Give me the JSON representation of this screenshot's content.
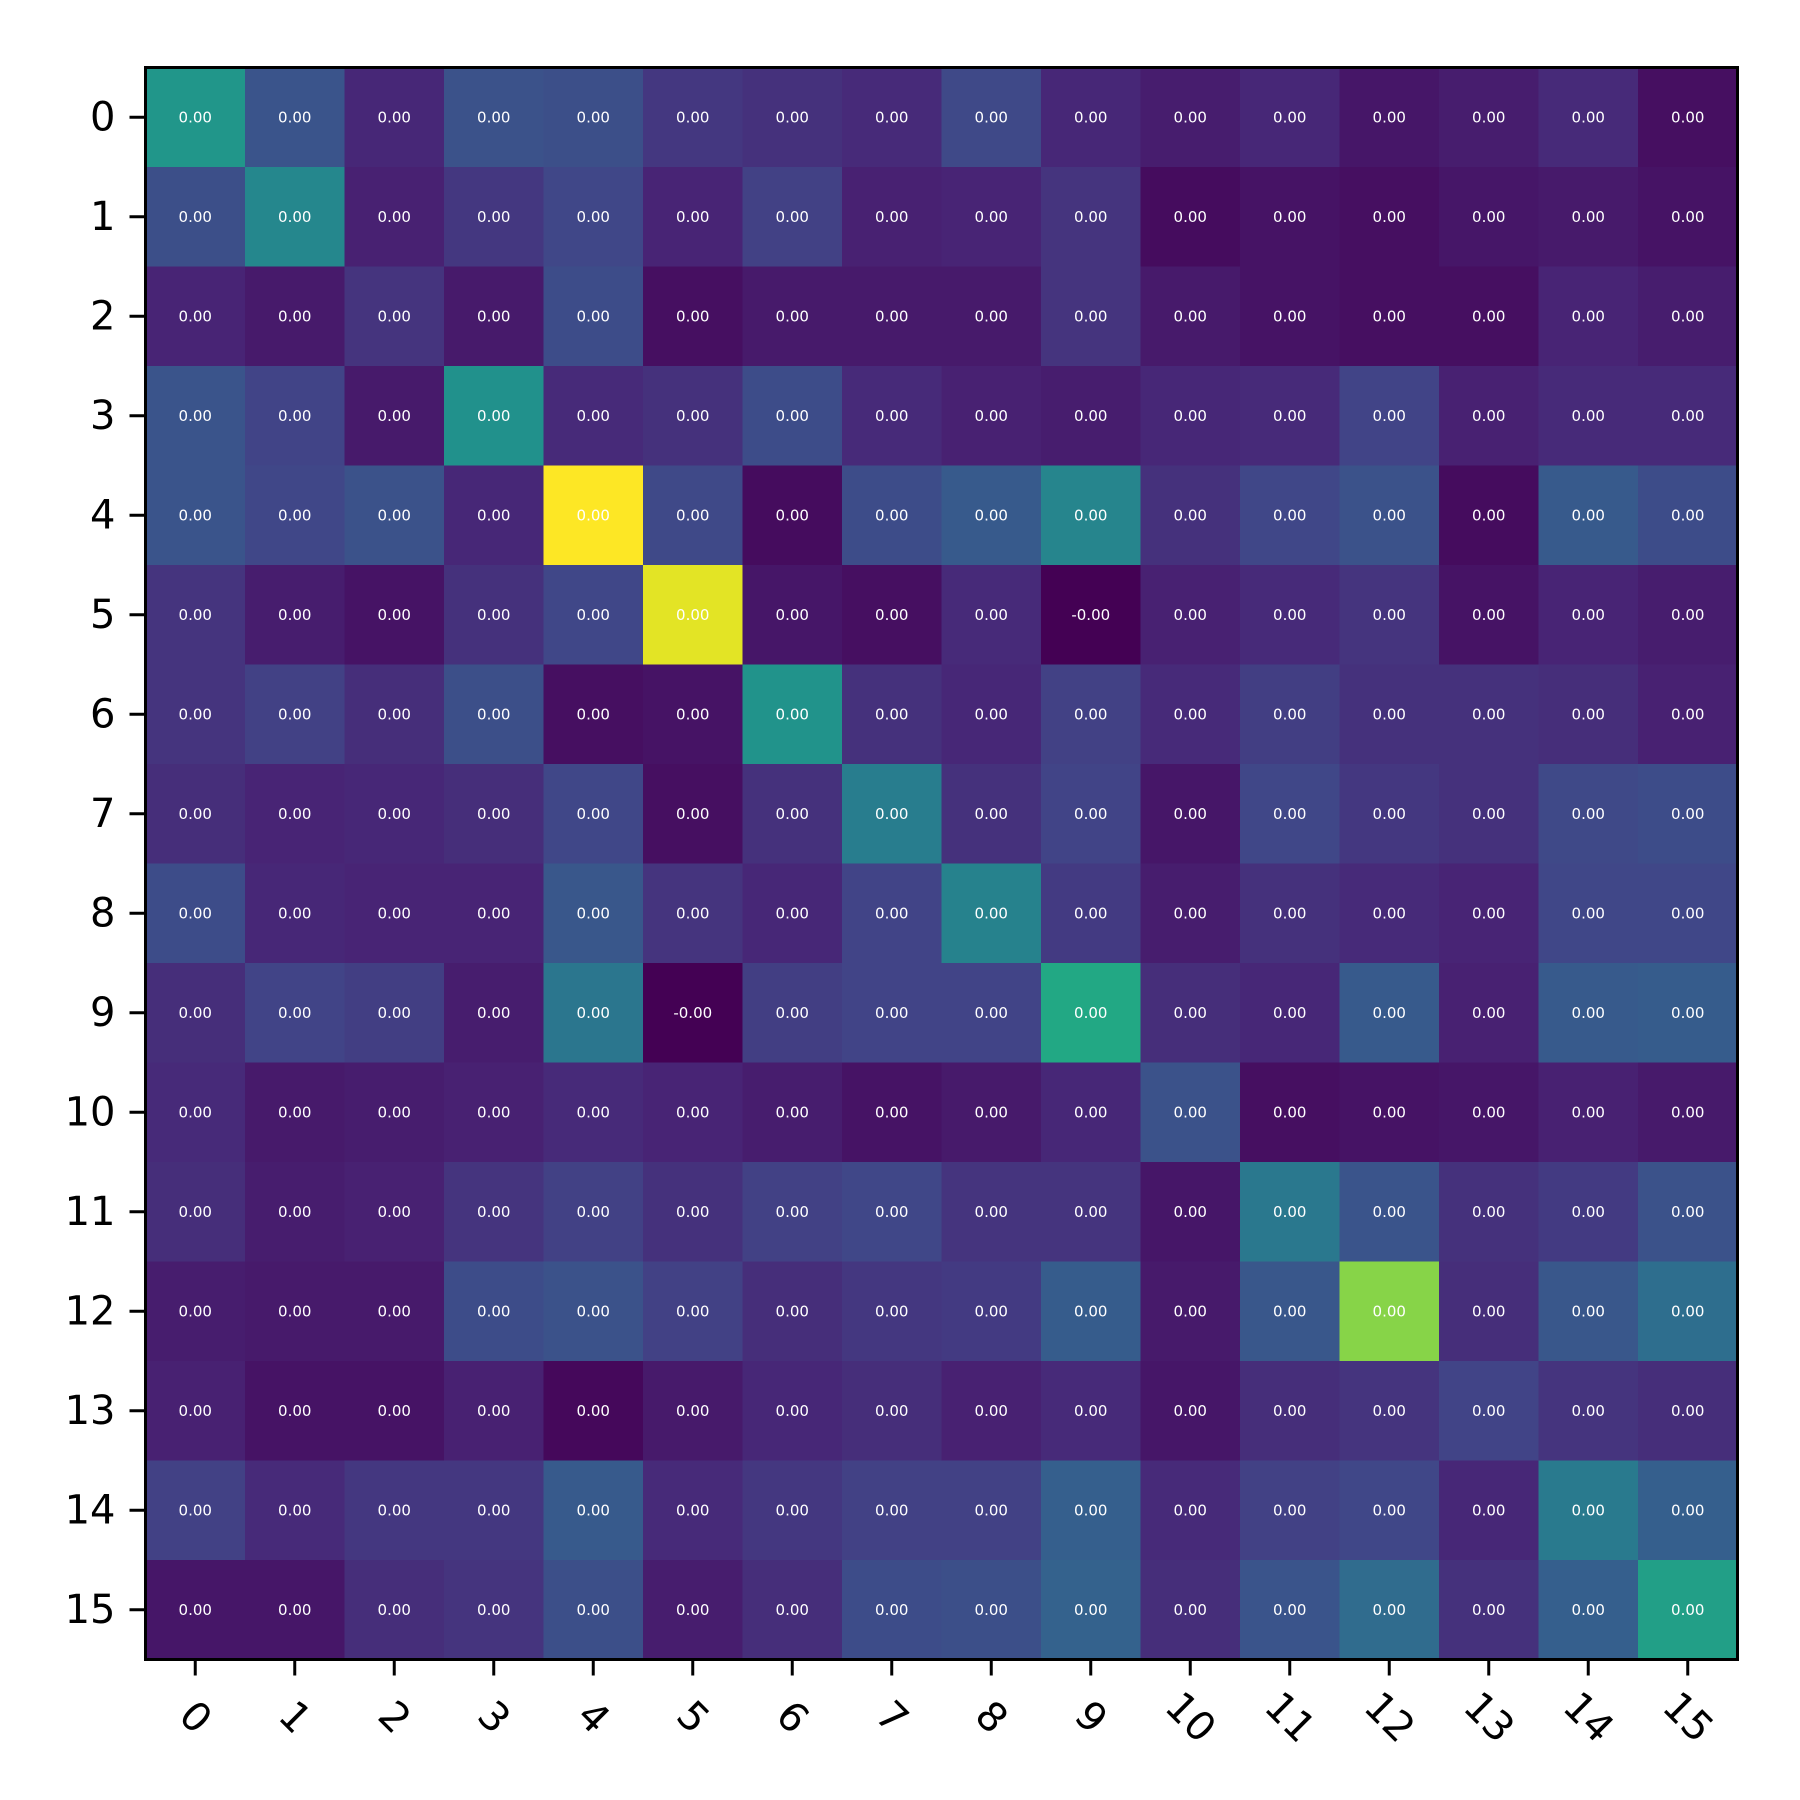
{
  "chart_data": {
    "type": "heatmap",
    "title": "",
    "xlabel": "",
    "ylabel": "",
    "x_tick_labels": [
      "0",
      "1",
      "2",
      "3",
      "4",
      "5",
      "6",
      "7",
      "8",
      "9",
      "10",
      "11",
      "12",
      "13",
      "14",
      "15"
    ],
    "y_tick_labels": [
      "0",
      "1",
      "2",
      "3",
      "4",
      "5",
      "6",
      "7",
      "8",
      "9",
      "10",
      "11",
      "12",
      "13",
      "14",
      "15"
    ],
    "colormap": "viridis",
    "grid": false,
    "colorbar": false,
    "x_tick_rotation_deg": 45,
    "color_intensity_0_to_1": [
      [
        0.52,
        0.26,
        0.11,
        0.25,
        0.24,
        0.16,
        0.14,
        0.12,
        0.22,
        0.11,
        0.08,
        0.11,
        0.06,
        0.08,
        0.12,
        0.04
      ],
      [
        0.24,
        0.46,
        0.09,
        0.16,
        0.21,
        0.1,
        0.19,
        0.09,
        0.1,
        0.15,
        0.03,
        0.05,
        0.04,
        0.06,
        0.07,
        0.05
      ],
      [
        0.1,
        0.07,
        0.15,
        0.07,
        0.23,
        0.04,
        0.07,
        0.07,
        0.07,
        0.15,
        0.07,
        0.05,
        0.04,
        0.04,
        0.1,
        0.08
      ],
      [
        0.26,
        0.2,
        0.07,
        0.5,
        0.12,
        0.14,
        0.23,
        0.12,
        0.09,
        0.08,
        0.11,
        0.12,
        0.2,
        0.09,
        0.12,
        0.12
      ],
      [
        0.26,
        0.21,
        0.25,
        0.11,
        1.0,
        0.22,
        0.03,
        0.23,
        0.28,
        0.45,
        0.14,
        0.21,
        0.25,
        0.03,
        0.28,
        0.23
      ],
      [
        0.15,
        0.08,
        0.05,
        0.14,
        0.21,
        0.96,
        0.06,
        0.04,
        0.12,
        0.0,
        0.09,
        0.12,
        0.15,
        0.05,
        0.1,
        0.08
      ],
      [
        0.15,
        0.19,
        0.13,
        0.24,
        0.04,
        0.05,
        0.51,
        0.14,
        0.11,
        0.19,
        0.12,
        0.18,
        0.14,
        0.14,
        0.13,
        0.09
      ],
      [
        0.13,
        0.1,
        0.11,
        0.13,
        0.21,
        0.04,
        0.14,
        0.42,
        0.14,
        0.2,
        0.06,
        0.21,
        0.16,
        0.14,
        0.22,
        0.23
      ],
      [
        0.23,
        0.11,
        0.1,
        0.1,
        0.27,
        0.15,
        0.11,
        0.2,
        0.44,
        0.17,
        0.08,
        0.14,
        0.12,
        0.1,
        0.21,
        0.21
      ],
      [
        0.13,
        0.2,
        0.18,
        0.08,
        0.39,
        0.0,
        0.18,
        0.2,
        0.2,
        0.6,
        0.13,
        0.11,
        0.28,
        0.09,
        0.28,
        0.29
      ],
      [
        0.12,
        0.07,
        0.08,
        0.09,
        0.12,
        0.1,
        0.08,
        0.05,
        0.07,
        0.11,
        0.25,
        0.04,
        0.05,
        0.06,
        0.09,
        0.07
      ],
      [
        0.13,
        0.08,
        0.09,
        0.15,
        0.19,
        0.14,
        0.19,
        0.21,
        0.15,
        0.15,
        0.06,
        0.4,
        0.26,
        0.14,
        0.17,
        0.25
      ],
      [
        0.08,
        0.07,
        0.07,
        0.23,
        0.25,
        0.19,
        0.13,
        0.16,
        0.17,
        0.29,
        0.07,
        0.27,
        0.82,
        0.13,
        0.27,
        0.36
      ],
      [
        0.09,
        0.05,
        0.05,
        0.09,
        0.02,
        0.07,
        0.11,
        0.13,
        0.09,
        0.12,
        0.06,
        0.13,
        0.15,
        0.2,
        0.15,
        0.13
      ],
      [
        0.19,
        0.12,
        0.16,
        0.16,
        0.28,
        0.12,
        0.16,
        0.19,
        0.19,
        0.3,
        0.12,
        0.19,
        0.21,
        0.11,
        0.41,
        0.3
      ],
      [
        0.06,
        0.06,
        0.13,
        0.15,
        0.24,
        0.08,
        0.13,
        0.23,
        0.24,
        0.31,
        0.13,
        0.26,
        0.35,
        0.14,
        0.3,
        0.56
      ]
    ],
    "cell_labels": [
      [
        "0.00",
        "0.00",
        "0.00",
        "0.00",
        "0.00",
        "0.00",
        "0.00",
        "0.00",
        "0.00",
        "0.00",
        "0.00",
        "0.00",
        "0.00",
        "0.00",
        "0.00",
        "0.00"
      ],
      [
        "0.00",
        "0.00",
        "0.00",
        "0.00",
        "0.00",
        "0.00",
        "0.00",
        "0.00",
        "0.00",
        "0.00",
        "0.00",
        "0.00",
        "0.00",
        "0.00",
        "0.00",
        "0.00"
      ],
      [
        "0.00",
        "0.00",
        "0.00",
        "0.00",
        "0.00",
        "0.00",
        "0.00",
        "0.00",
        "0.00",
        "0.00",
        "0.00",
        "0.00",
        "0.00",
        "0.00",
        "0.00",
        "0.00"
      ],
      [
        "0.00",
        "0.00",
        "0.00",
        "0.00",
        "0.00",
        "0.00",
        "0.00",
        "0.00",
        "0.00",
        "0.00",
        "0.00",
        "0.00",
        "0.00",
        "0.00",
        "0.00",
        "0.00"
      ],
      [
        "0.00",
        "0.00",
        "0.00",
        "0.00",
        "0.00",
        "0.00",
        "0.00",
        "0.00",
        "0.00",
        "0.00",
        "0.00",
        "0.00",
        "0.00",
        "0.00",
        "0.00",
        "0.00"
      ],
      [
        "0.00",
        "0.00",
        "0.00",
        "0.00",
        "0.00",
        "0.00",
        "0.00",
        "0.00",
        "0.00",
        "-0.00",
        "0.00",
        "0.00",
        "0.00",
        "0.00",
        "0.00",
        "0.00"
      ],
      [
        "0.00",
        "0.00",
        "0.00",
        "0.00",
        "0.00",
        "0.00",
        "0.00",
        "0.00",
        "0.00",
        "0.00",
        "0.00",
        "0.00",
        "0.00",
        "0.00",
        "0.00",
        "0.00"
      ],
      [
        "0.00",
        "0.00",
        "0.00",
        "0.00",
        "0.00",
        "0.00",
        "0.00",
        "0.00",
        "0.00",
        "0.00",
        "0.00",
        "0.00",
        "0.00",
        "0.00",
        "0.00",
        "0.00"
      ],
      [
        "0.00",
        "0.00",
        "0.00",
        "0.00",
        "0.00",
        "0.00",
        "0.00",
        "0.00",
        "0.00",
        "0.00",
        "0.00",
        "0.00",
        "0.00",
        "0.00",
        "0.00",
        "0.00"
      ],
      [
        "0.00",
        "0.00",
        "0.00",
        "0.00",
        "0.00",
        "-0.00",
        "0.00",
        "0.00",
        "0.00",
        "0.00",
        "0.00",
        "0.00",
        "0.00",
        "0.00",
        "0.00",
        "0.00"
      ],
      [
        "0.00",
        "0.00",
        "0.00",
        "0.00",
        "0.00",
        "0.00",
        "0.00",
        "0.00",
        "0.00",
        "0.00",
        "0.00",
        "0.00",
        "0.00",
        "0.00",
        "0.00",
        "0.00"
      ],
      [
        "0.00",
        "0.00",
        "0.00",
        "0.00",
        "0.00",
        "0.00",
        "0.00",
        "0.00",
        "0.00",
        "0.00",
        "0.00",
        "0.00",
        "0.00",
        "0.00",
        "0.00",
        "0.00"
      ],
      [
        "0.00",
        "0.00",
        "0.00",
        "0.00",
        "0.00",
        "0.00",
        "0.00",
        "0.00",
        "0.00",
        "0.00",
        "0.00",
        "0.00",
        "0.00",
        "0.00",
        "0.00",
        "0.00"
      ],
      [
        "0.00",
        "0.00",
        "0.00",
        "0.00",
        "0.00",
        "0.00",
        "0.00",
        "0.00",
        "0.00",
        "0.00",
        "0.00",
        "0.00",
        "0.00",
        "0.00",
        "0.00",
        "0.00"
      ],
      [
        "0.00",
        "0.00",
        "0.00",
        "0.00",
        "0.00",
        "0.00",
        "0.00",
        "0.00",
        "0.00",
        "0.00",
        "0.00",
        "0.00",
        "0.00",
        "0.00",
        "0.00",
        "0.00"
      ],
      [
        "0.00",
        "0.00",
        "0.00",
        "0.00",
        "0.00",
        "0.00",
        "0.00",
        "0.00",
        "0.00",
        "0.00",
        "0.00",
        "0.00",
        "0.00",
        "0.00",
        "0.00",
        "0.00"
      ]
    ],
    "cell_label_color": "#ffffff"
  }
}
